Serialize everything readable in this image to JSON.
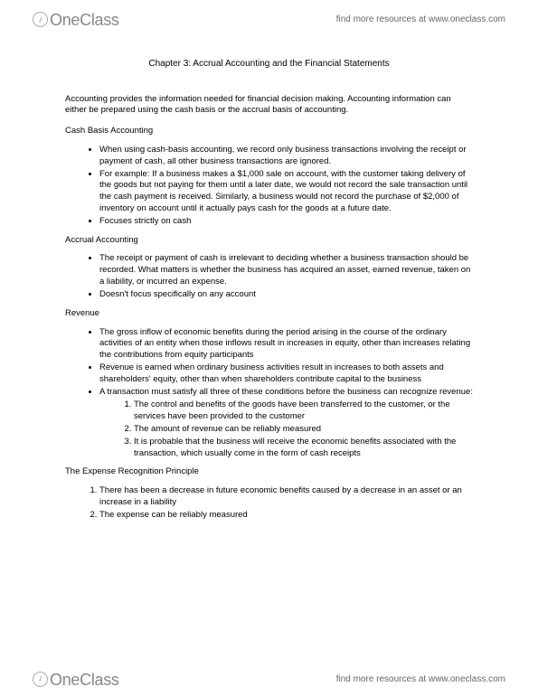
{
  "brand": {
    "part1": "One",
    "part2": "Class"
  },
  "resources_text": "find more resources at www.oneclass.com",
  "title": "Chapter 3: Accrual Accounting and the Financial Statements",
  "intro": "Accounting provides the information needed for financial decision making. Accounting information can either be prepared using the cash basis or the accrual basis of accounting.",
  "sections": {
    "cash": {
      "heading": "Cash Basis Accounting",
      "bullets": [
        "When using cash-basis accounting, we record only business transactions involving the receipt or payment of cash, all other business transactions are ignored.",
        "For example: If a business makes a $1,000 sale on account, with the customer taking delivery of the goods but not paying for them until a later date, we would not record the sale transaction until the cash payment is received. Similarly, a business would not record the purchase of $2,000 of inventory on account until it actually pays cash for the goods at a future date.",
        "Focuses strictly on cash"
      ]
    },
    "accrual": {
      "heading": "Accrual Accounting",
      "bullets": [
        "The receipt or payment of cash is irrelevant to deciding whether a business transaction should be recorded. What matters is whether the business has acquired an asset, earned revenue, taken on a liability, or incurred an expense.",
        "Doesn't focus specifically on any account"
      ]
    },
    "revenue": {
      "heading": "Revenue",
      "bullets": [
        "The gross inflow of economic benefits during the period arising in the course of the ordinary activities of an entity when those inflows result in increases in equity, other than increases relating the contributions from equity participants",
        "Revenue is earned when ordinary business activities result in increases to both assets and shareholders' equity, other than when shareholders contribute capital to the business",
        "A transaction must satisfy all three of these conditions before the business can recognize revenue:"
      ],
      "conditions": [
        "The control and benefits of the goods have been transferred to the customer, or the services have been provided to the customer",
        "The amount of revenue can be reliably measured",
        "It is probable that the business will receive the economic benefits associated with the transaction, which usually come in the form of cash receipts"
      ]
    },
    "expense": {
      "heading": "The Expense Recognition Principle",
      "items": [
        "There has been a decrease in future economic benefits caused by a decrease in an asset or an increase in a liability",
        "The expense can be reliably measured"
      ]
    }
  }
}
